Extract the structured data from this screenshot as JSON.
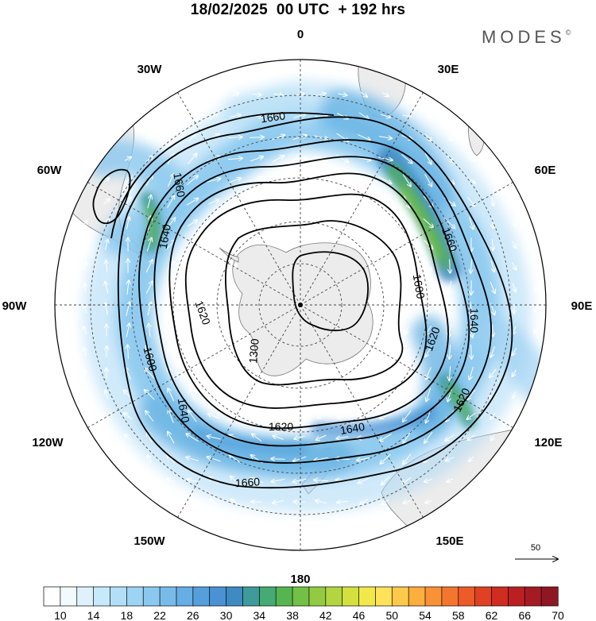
{
  "header": {
    "title": "18/02/2025  00 UTC  + 192 hrs",
    "brand": "MODES",
    "brand_mark": "©"
  },
  "map": {
    "projection": "south-polar-stereographic",
    "longitude_labels": [
      {
        "lon": 0,
        "text": "0"
      },
      {
        "lon": 30,
        "text": "30E"
      },
      {
        "lon": 60,
        "text": "60E"
      },
      {
        "lon": 90,
        "text": "90E"
      },
      {
        "lon": 120,
        "text": "120E"
      },
      {
        "lon": 150,
        "text": "150E"
      },
      {
        "lon": 180,
        "text": "180"
      },
      {
        "lon": -150,
        "text": "150W"
      },
      {
        "lon": -120,
        "text": "120W"
      },
      {
        "lon": -90,
        "text": "90W"
      },
      {
        "lon": -60,
        "text": "60W"
      },
      {
        "lon": -30,
        "text": "30W"
      }
    ],
    "contour_labels": [
      "1660",
      "1660",
      "1660",
      "1660",
      "1640",
      "1640",
      "1640",
      "1640",
      "1620",
      "1620",
      "1620",
      "1620",
      "1600",
      "1600",
      "1580",
      "1580",
      "1300",
      "1620"
    ],
    "colors": {
      "land": "#ececec",
      "coast": "#777777",
      "contour": "#000000",
      "wind_arrow": "#ffffff"
    }
  },
  "reference_vector": {
    "label": "50"
  },
  "colorbar": {
    "colors": [
      "#ffffff",
      "#f2fafe",
      "#dff2fc",
      "#c8e9fa",
      "#b2dff7",
      "#9dd3f3",
      "#8bc8ef",
      "#78bbe9",
      "#66aee3",
      "#549fdc",
      "#4a92d4",
      "#3f8ac2",
      "#3f9b9b",
      "#45aa73",
      "#55b550",
      "#72c045",
      "#92cb42",
      "#b3d640",
      "#d3e040",
      "#f1e94a",
      "#fde25a",
      "#fdc94b",
      "#fcae3f",
      "#f99236",
      "#f4762e",
      "#ec5b28",
      "#e04123",
      "#cf2c22",
      "#bb1f22",
      "#a51b24",
      "#8f1722"
    ],
    "labels": [
      "10",
      "14",
      "18",
      "22",
      "26",
      "30",
      "34",
      "38",
      "42",
      "46",
      "50",
      "54",
      "58",
      "62",
      "66",
      "70"
    ]
  }
}
